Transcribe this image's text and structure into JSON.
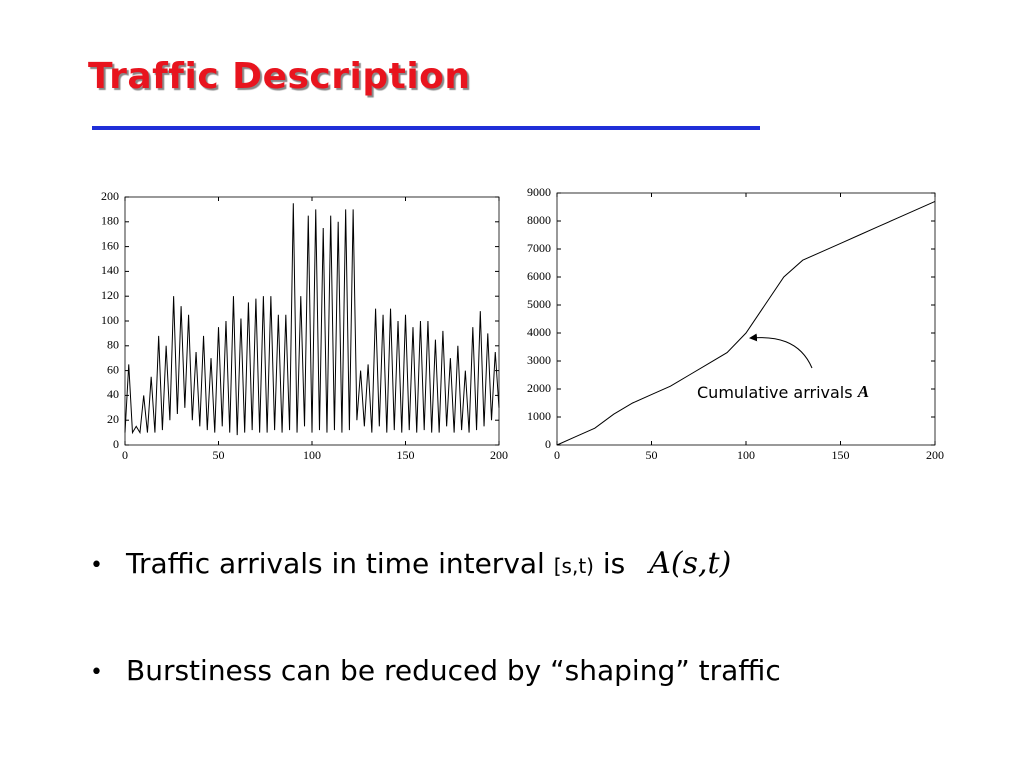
{
  "title": "Traffic Description",
  "chart_data": [
    {
      "type": "line",
      "color": "#000000",
      "x": [
        0,
        2,
        4,
        6,
        8,
        10,
        12,
        14,
        16,
        18,
        20,
        22,
        24,
        26,
        28,
        30,
        32,
        34,
        36,
        38,
        40,
        42,
        44,
        46,
        48,
        50,
        52,
        54,
        56,
        58,
        60,
        62,
        64,
        66,
        68,
        70,
        72,
        74,
        76,
        78,
        80,
        82,
        84,
        86,
        88,
        90,
        92,
        94,
        96,
        98,
        100,
        102,
        104,
        106,
        108,
        110,
        112,
        114,
        116,
        118,
        120,
        122,
        124,
        126,
        128,
        130,
        132,
        134,
        136,
        138,
        140,
        142,
        144,
        146,
        148,
        150,
        152,
        154,
        156,
        158,
        160,
        162,
        164,
        166,
        168,
        170,
        172,
        174,
        176,
        178,
        180,
        182,
        184,
        186,
        188,
        190,
        192,
        194,
        196,
        198,
        200
      ],
      "values": [
        10,
        65,
        10,
        15,
        10,
        40,
        10,
        55,
        10,
        88,
        12,
        80,
        20,
        120,
        25,
        112,
        30,
        105,
        20,
        75,
        15,
        88,
        12,
        70,
        10,
        95,
        15,
        100,
        10,
        120,
        8,
        102,
        10,
        115,
        12,
        118,
        10,
        120,
        10,
        120,
        12,
        105,
        10,
        105,
        12,
        195,
        10,
        120,
        15,
        185,
        10,
        190,
        12,
        175,
        10,
        185,
        12,
        180,
        10,
        190,
        12,
        190,
        20,
        60,
        15,
        65,
        10,
        110,
        15,
        105,
        10,
        110,
        12,
        100,
        10,
        105,
        12,
        95,
        10,
        100,
        12,
        100,
        10,
        85,
        10,
        92,
        15,
        70,
        10,
        80,
        12,
        60,
        10,
        95,
        12,
        108,
        15,
        90,
        20,
        75,
        30
      ],
      "xlim": [
        0,
        200
      ],
      "xticks": [
        0,
        50,
        100,
        150,
        200
      ],
      "ylim": [
        0,
        200
      ],
      "yticks": [
        0,
        20,
        40,
        60,
        80,
        100,
        120,
        140,
        160,
        180,
        200
      ]
    },
    {
      "type": "line",
      "color": "#000000",
      "x": [
        0,
        10,
        20,
        30,
        40,
        50,
        60,
        70,
        80,
        90,
        100,
        110,
        120,
        130,
        140,
        150,
        160,
        170,
        180,
        190,
        200
      ],
      "values": [
        0,
        300,
        600,
        1100,
        1500,
        1800,
        2100,
        2500,
        2900,
        3300,
        4000,
        5000,
        6000,
        6600,
        6900,
        7200,
        7500,
        7800,
        8100,
        8400,
        8700
      ],
      "xlim": [
        0,
        200
      ],
      "xticks": [
        0,
        50,
        100,
        150,
        200
      ],
      "ylim": [
        0,
        9000
      ],
      "yticks": [
        0,
        1000,
        2000,
        3000,
        4000,
        5000,
        6000,
        7000,
        8000,
        9000
      ],
      "annotation": {
        "text": "Cumulative arrivals",
        "symbol": "A"
      }
    }
  ],
  "bullets": [
    {
      "text": "Traffic arrivals in time interval",
      "interval": "[s,t)",
      "suffix": "is",
      "math": "A(s,t)"
    },
    {
      "text": "Burstiness can be reduced by “shaping” traffic"
    }
  ]
}
